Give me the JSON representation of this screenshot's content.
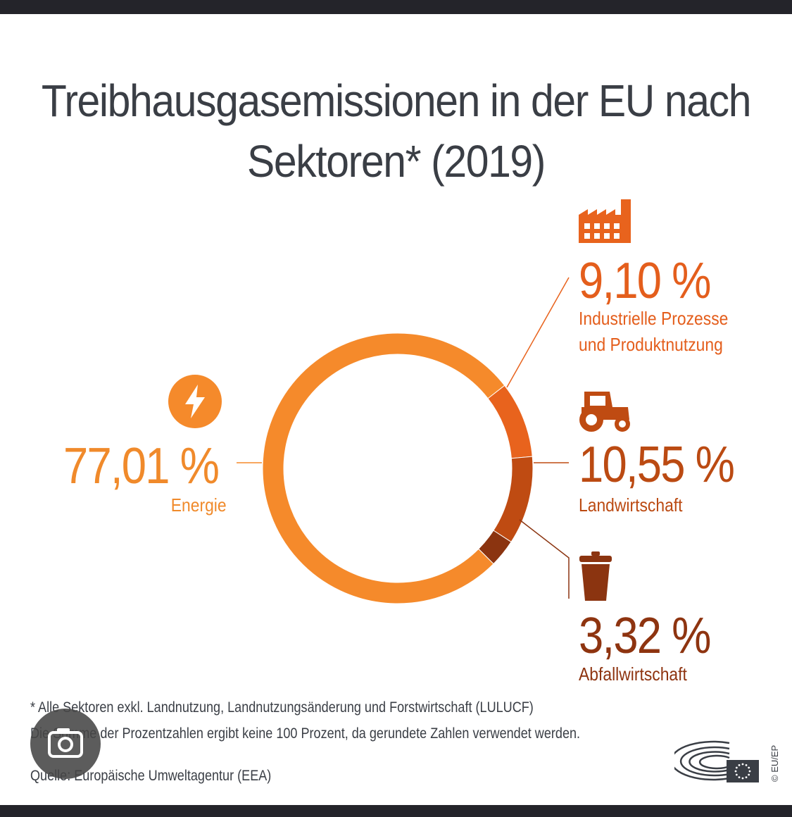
{
  "title_line1": "Treibhausgasemissionen in der EU nach",
  "title_line2": "Sektoren* (2019)",
  "chart_data": {
    "type": "pie",
    "style": "donut",
    "title": "Treibhausgasemissionen in der EU nach Sektoren* (2019)",
    "categories": [
      "Energie",
      "Industrielle Prozesse und Produktnutzung",
      "Landwirtschaft",
      "Abfallwirtschaft"
    ],
    "values": [
      77.01,
      9.1,
      10.55,
      3.32
    ],
    "value_labels": [
      "77,01 %",
      "9,10 %",
      "10,55 %",
      "3,32 %"
    ],
    "colors": [
      "#f58a2b",
      "#e8631d",
      "#bf4b12",
      "#8b3410"
    ]
  },
  "labels": {
    "energy": {
      "pct": "77,01 %",
      "name": "Energie",
      "icon": "lightning-icon"
    },
    "industry": {
      "pct": "9,10 %",
      "name_line1": "Industrielle Prozesse",
      "name_line2": "und Produktnutzung",
      "icon": "factory-icon"
    },
    "agriculture": {
      "pct": "10,55 %",
      "name": "Landwirtschaft",
      "icon": "tractor-icon"
    },
    "waste": {
      "pct": "3,32 %",
      "name": "Abfallwirtschaft",
      "icon": "trash-bin-icon"
    }
  },
  "notes": {
    "line1": "* Alle Sektoren exkl. Landnutzung, Landnutzungsänderung und Forstwirtschaft (LULUCF)",
    "line2": "Die Summe der Prozentzahlen ergibt keine 100 Prozent, da gerundete Zahlen verwendet werden.",
    "source": "Quelle: Europäische Umweltagentur (EEA)"
  },
  "copyright": "© EU/EP",
  "colors": {
    "energy": "#f58a2b",
    "industry": "#e8631d",
    "agriculture": "#bf4b12",
    "waste": "#8b3410",
    "text_dark": "#3a3e45"
  }
}
